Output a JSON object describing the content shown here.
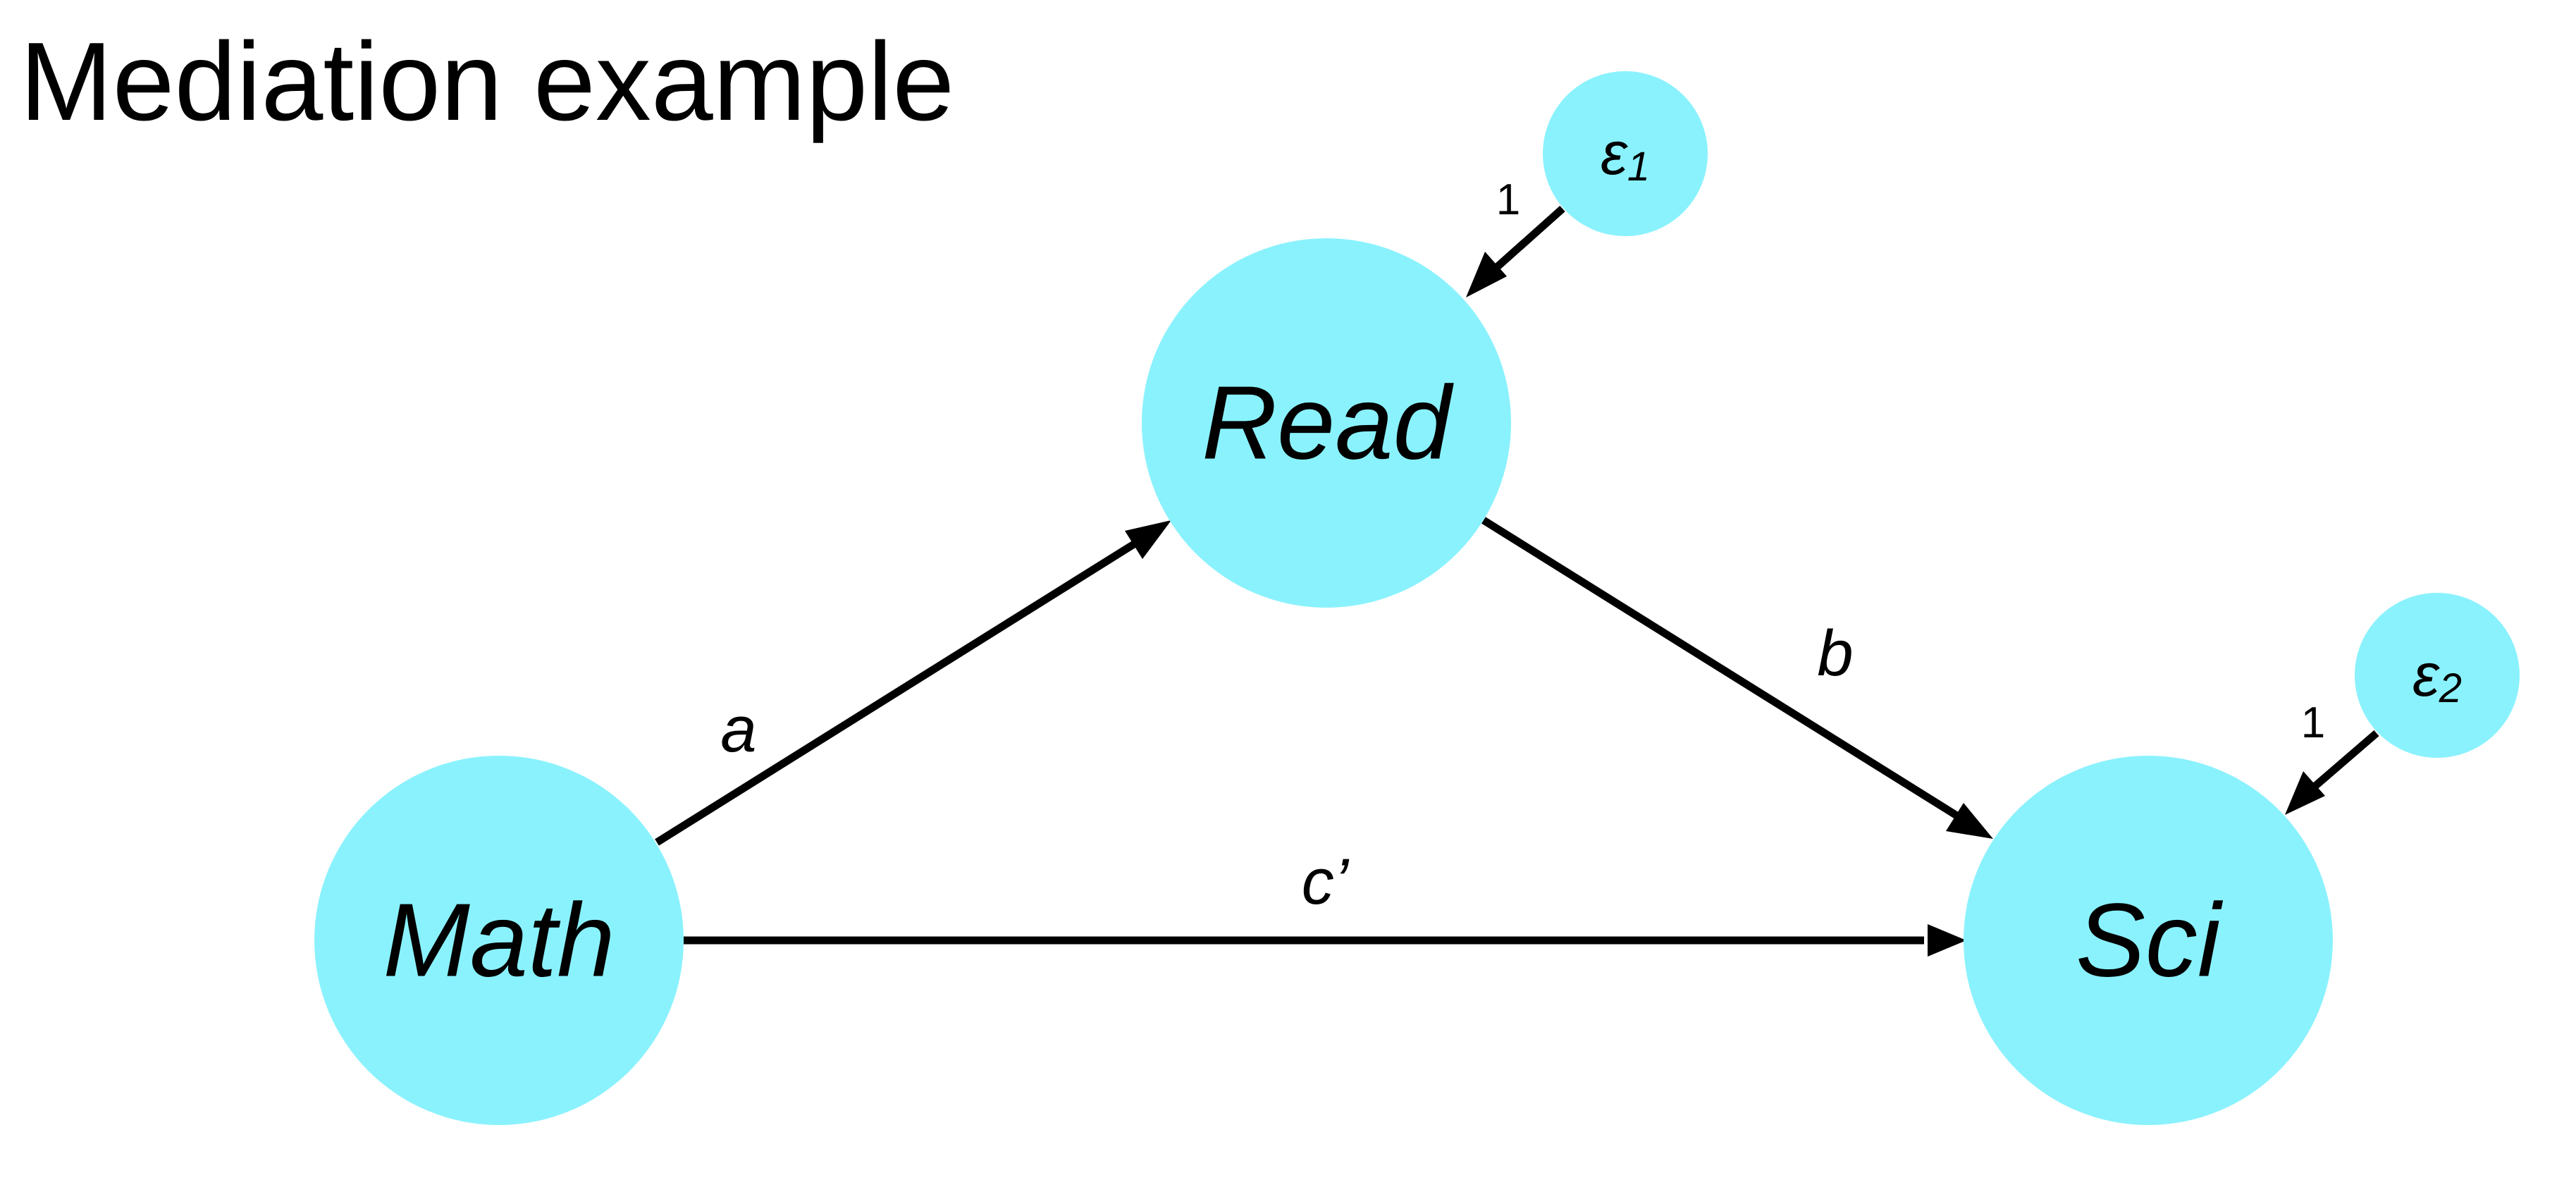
{
  "title": "Mediation example",
  "colors": {
    "node_fill": "#8AF2FD",
    "edge": "#000000",
    "text": "#000000",
    "background": "#FFFFFF"
  },
  "nodes": {
    "math": {
      "label": "Math"
    },
    "read": {
      "label": "Read"
    },
    "sci": {
      "label": "Sci"
    },
    "e1": {
      "label": "ε",
      "subscript": "1"
    },
    "e2": {
      "label": "ε",
      "subscript": "2"
    }
  },
  "edges": {
    "a": {
      "from": "Math",
      "to": "Read",
      "label": "a"
    },
    "b": {
      "from": "Read",
      "to": "Sci",
      "label": "b"
    },
    "c_prime": {
      "from": "Math",
      "to": "Sci",
      "label": "c’"
    },
    "e1_read": {
      "from": "ε1",
      "to": "Read",
      "label": "1"
    },
    "e2_sci": {
      "from": "ε2",
      "to": "Sci",
      "label": "1"
    }
  }
}
